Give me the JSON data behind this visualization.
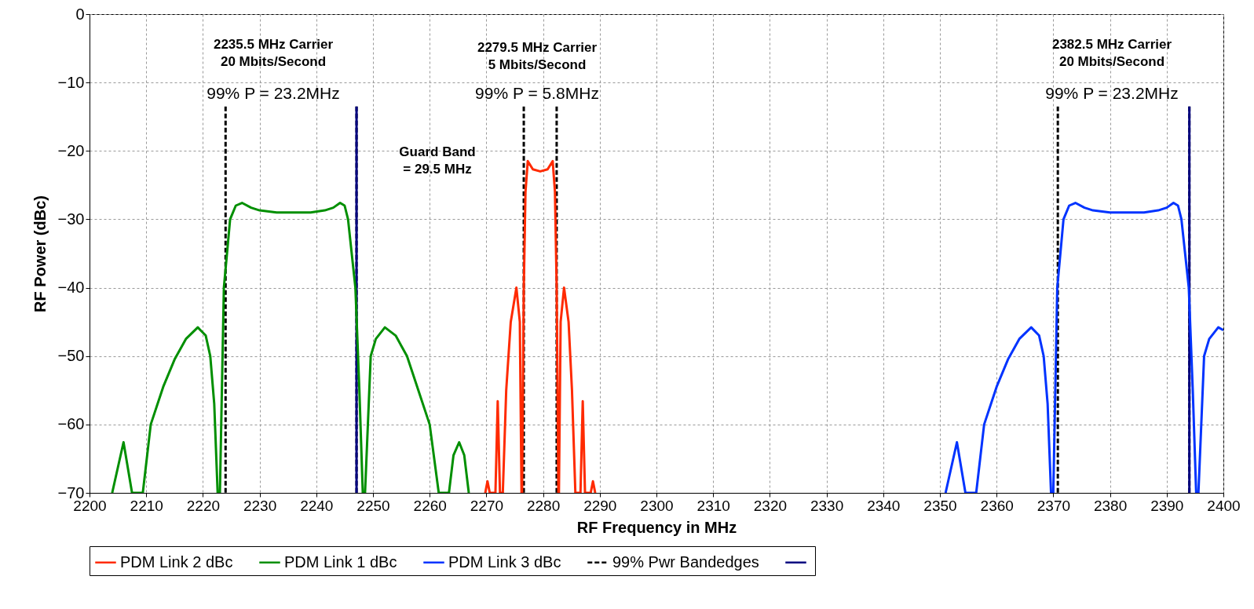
{
  "chart_data": {
    "type": "line",
    "xlabel": "RF Frequency in MHz",
    "ylabel": "RF Power (dBc)",
    "xlim": [
      2200,
      2400
    ],
    "xticks": [
      2200,
      2210,
      2220,
      2230,
      2240,
      2250,
      2260,
      2270,
      2280,
      2290,
      2300,
      2310,
      2320,
      2330,
      2340,
      2350,
      2360,
      2370,
      2380,
      2390,
      2400
    ],
    "ylim": [
      -70,
      0
    ],
    "yticks": [
      -70,
      -60,
      -50,
      -40,
      -30,
      -20,
      -10,
      0
    ],
    "grid": true,
    "legend": "bottom",
    "series": [
      {
        "name": "PDM Link 2 dBc",
        "color": "#ff2a00",
        "x": [
          2269.8,
          2270.2,
          2270.6,
          2271.6,
          2272.0,
          2272.4,
          2272.9,
          2273.5,
          2274.3,
          2275.3,
          2275.9,
          2276.2,
          2276.3,
          2276.6,
          2276.9,
          2277.3,
          2278.2,
          2279.5,
          2280.8,
          2281.7,
          2282.1,
          2282.4,
          2282.7,
          2282.8,
          2283.1,
          2283.7,
          2284.5,
          2285.1,
          2285.7,
          2286.6,
          2287.0,
          2287.4,
          2288.4,
          2288.8,
          2289.2
        ],
        "values": [
          -70,
          -68.3,
          -70,
          -70,
          -56.6,
          -70,
          -70,
          -55,
          -45,
          -40,
          -45,
          -70,
          -70,
          -40,
          -26,
          -21.5,
          -22.7,
          -23,
          -22.7,
          -21.5,
          -26,
          -40,
          -70,
          -70,
          -45,
          -40,
          -45,
          -55,
          -70,
          -70,
          -56.6,
          -70,
          -70,
          -68.3,
          -70
        ]
      },
      {
        "name": "PDM Link 1 dBc",
        "color": "#008f00",
        "x": [
          2204.0,
          2206.0,
          2207.5,
          2209.4,
          2210.8,
          2213,
          2215.0,
          2217,
          2219.1,
          2220.5,
          2221.3,
          2222.0,
          2222.6,
          2223.0,
          2223.7,
          2224.8,
          2225.8,
          2226.9,
          2228.5,
          2230,
          2233,
          2235.9,
          2239,
          2241.5,
          2243,
          2244.2,
          2245.0,
          2245.6,
          2246.9,
          2247.6,
          2248.2,
          2248.6,
          2249.6,
          2250.5,
          2252.1,
          2254,
          2256.0,
          2258,
          2260.0,
          2261.6,
          2263.4,
          2264.2,
          2265.2,
          2266.1,
          2266.9
        ],
        "values": [
          -70,
          -62.6,
          -70,
          -70,
          -60,
          -54.5,
          -50.5,
          -47.5,
          -45.8,
          -47,
          -50,
          -57,
          -70,
          -70,
          -40,
          -30,
          -28,
          -27.6,
          -28.3,
          -28.7,
          -29,
          -29,
          -29,
          -28.7,
          -28.3,
          -27.6,
          -28,
          -30,
          -40,
          -55,
          -70,
          -70,
          -50,
          -47.5,
          -45.8,
          -47,
          -50,
          -55,
          -60,
          -70,
          -70,
          -64.5,
          -62.6,
          -64.5,
          -70
        ]
      },
      {
        "name": "PDM Link 3 dBc",
        "color": "#0033ff",
        "x": [
          2351.0,
          2353.0,
          2354.5,
          2356.4,
          2357.8,
          2360,
          2362.0,
          2364,
          2366.1,
          2367.5,
          2368.3,
          2369.0,
          2369.6,
          2370.0,
          2370.7,
          2371.8,
          2372.8,
          2373.9,
          2375.5,
          2377,
          2380,
          2382.9,
          2386,
          2388.5,
          2390,
          2391.2,
          2392.0,
          2392.6,
          2393.9,
          2394.6,
          2395.2,
          2395.6,
          2396.6,
          2397.5,
          2399.1,
          2400
        ],
        "values": [
          -70,
          -62.6,
          -70,
          -70,
          -60,
          -54.5,
          -50.5,
          -47.5,
          -45.8,
          -47,
          -50,
          -57,
          -70,
          -70,
          -40,
          -30,
          -28,
          -27.6,
          -28.3,
          -28.7,
          -29,
          -29,
          -29,
          -28.7,
          -28.3,
          -27.6,
          -28,
          -30,
          -40,
          -55,
          -70,
          -70,
          -50,
          -47.5,
          -45.8,
          -46.2
        ]
      },
      {
        "name": "99% Pwr Bandedges",
        "color": "#000000",
        "line_style": "dashed",
        "x": [
          2224.0,
          2224.0,
          null,
          2247.1,
          2247.1,
          null,
          2276.6,
          2276.6,
          null,
          2282.4,
          2282.4,
          null,
          2370.8,
          2370.8,
          null,
          2394.0,
          2394.0
        ],
        "values": [
          -13.5,
          -70,
          null,
          -13.5,
          -70,
          null,
          -13.5,
          -70,
          null,
          -13.5,
          -70,
          null,
          -13.5,
          -70,
          null,
          -13.5,
          -70
        ]
      },
      {
        "color": "#000080",
        "line_style": "solid",
        "x": [
          2247.1,
          2247.1
        ],
        "values": [
          -13.5,
          -70
        ]
      },
      {
        "color": "#000080",
        "line_style": "solid",
        "x": [
          2394.0,
          2394.0
        ],
        "values": [
          -13.5,
          -70
        ]
      }
    ],
    "annotations": [
      "2235.5 MHz Carrier\n20 Mbits/Second",
      "99% P = 23.2MHz",
      "2279.5 MHz Carrier\n5 Mbits/Second",
      "99% P = 5.8MHz",
      "2382.5 MHz Carrier\n20 Mbits/Second",
      "99% P = 23.2MHz",
      "Guard Band\n= 29.5 MHz"
    ]
  }
}
